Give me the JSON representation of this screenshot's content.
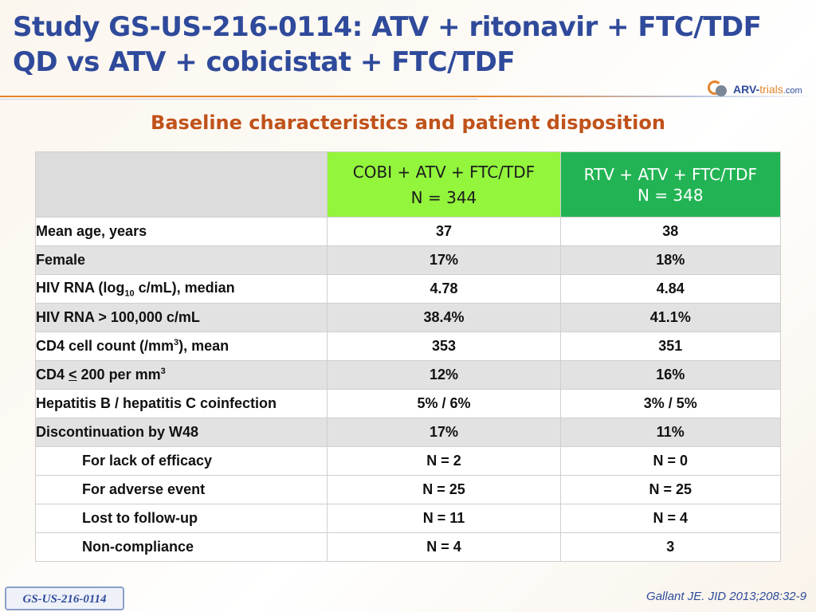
{
  "title": {
    "line1": "Study GS-US-216-0114: ATV + ritonavir + FTC/TDF",
    "line2": "QD vs ATV + cobicistat + FTC/TDF"
  },
  "logo": {
    "arv": "ARV-",
    "trials": "trials",
    "com": ".com"
  },
  "subtitle": "Baseline characteristics and patient disposition",
  "table": {
    "columns": [
      {
        "line1": "COBI + ATV + FTC/TDF",
        "line2": "N = 344"
      },
      {
        "line1": "RTV + ATV + FTC/TDF",
        "line2": "N = 348"
      }
    ],
    "rows": [
      {
        "label": "Mean age, years",
        "a": "37",
        "b": "38"
      },
      {
        "label": "Female",
        "a": "17%",
        "b": "18%"
      },
      {
        "label_pre": "HIV RNA (log",
        "label_sub": "10",
        "label_post": " c/mL), median",
        "a": "4.78",
        "b": "4.84"
      },
      {
        "label": "HIV RNA > 100,000 c/mL",
        "a": "38.4%",
        "b": "41.1%"
      },
      {
        "label_pre": "CD4 cell count (/mm",
        "label_sup": "3",
        "label_post": "), mean",
        "a": "353",
        "b": "351"
      },
      {
        "label_pre": "CD4 ",
        "label_le": "<",
        "label_mid": " 200 per mm",
        "label_sup": "3",
        "a": "12%",
        "b": "16%"
      },
      {
        "label": "Hepatitis B / hepatitis C coinfection",
        "a": "5% / 6%",
        "b": "3% / 5%"
      },
      {
        "label": "Discontinuation by W48",
        "a": "17%",
        "b": "11%"
      },
      {
        "label": "For lack of efficacy",
        "a": "N = 2",
        "b": "N = 0"
      },
      {
        "label": "For adverse event",
        "a": "N = 25",
        "b": "N = 25"
      },
      {
        "label": "Lost to follow-up",
        "a": "N = 11",
        "b": "N = 4"
      },
      {
        "label": "Non-compliance",
        "a": "N = 4",
        "b": "3"
      }
    ]
  },
  "citation": "Gallant JE. JID 2013;208:32-9",
  "footer_tag": "GS-US-216-0114",
  "colors": {
    "title": "#2f4a9b",
    "subtitle": "#c0521a",
    "header_cobi": "#93f53c",
    "header_rtv": "#22b454",
    "row_shade": "#e2e2e2"
  }
}
